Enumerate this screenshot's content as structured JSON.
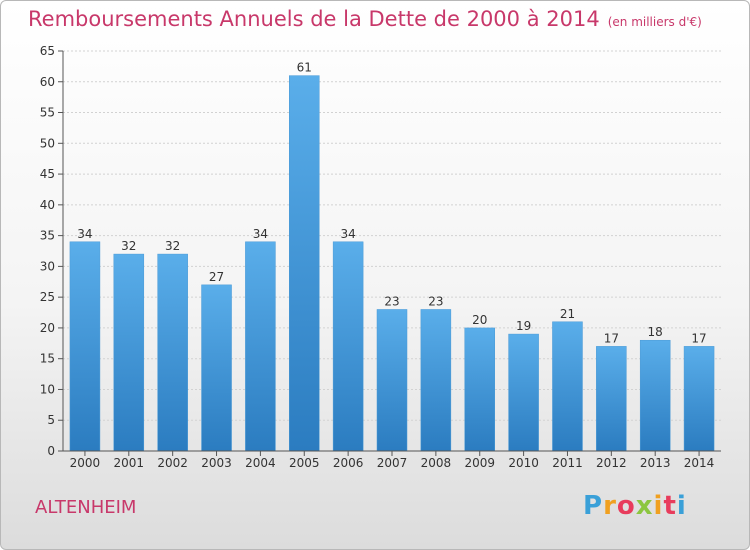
{
  "header": {
    "title": "Remboursements Annuels de la Dette de 2000 à 2014",
    "unit": "(en milliers d'€)"
  },
  "footer": {
    "place": "ALTENHEIM",
    "logo": "Proxiti"
  },
  "colors": {
    "accent": "#c8386a",
    "bar_light": "#5aaeea",
    "bar_dark": "#2b7cc0"
  },
  "chart_data": {
    "type": "bar",
    "title": "Remboursements Annuels de la Dette de 2000 à 2014",
    "unit": "(en milliers d'€)",
    "xlabel": "",
    "ylabel": "",
    "categories": [
      "2000",
      "2001",
      "2002",
      "2003",
      "2004",
      "2005",
      "2006",
      "2007",
      "2008",
      "2009",
      "2010",
      "2011",
      "2012",
      "2013",
      "2014"
    ],
    "values": [
      34,
      32,
      32,
      27,
      34,
      61,
      34,
      23,
      23,
      20,
      19,
      21,
      17,
      18,
      17
    ],
    "ylim": [
      0,
      65
    ],
    "yticks": [
      0,
      5,
      10,
      15,
      20,
      25,
      30,
      35,
      40,
      45,
      50,
      55,
      60,
      65
    ],
    "grid": true
  }
}
